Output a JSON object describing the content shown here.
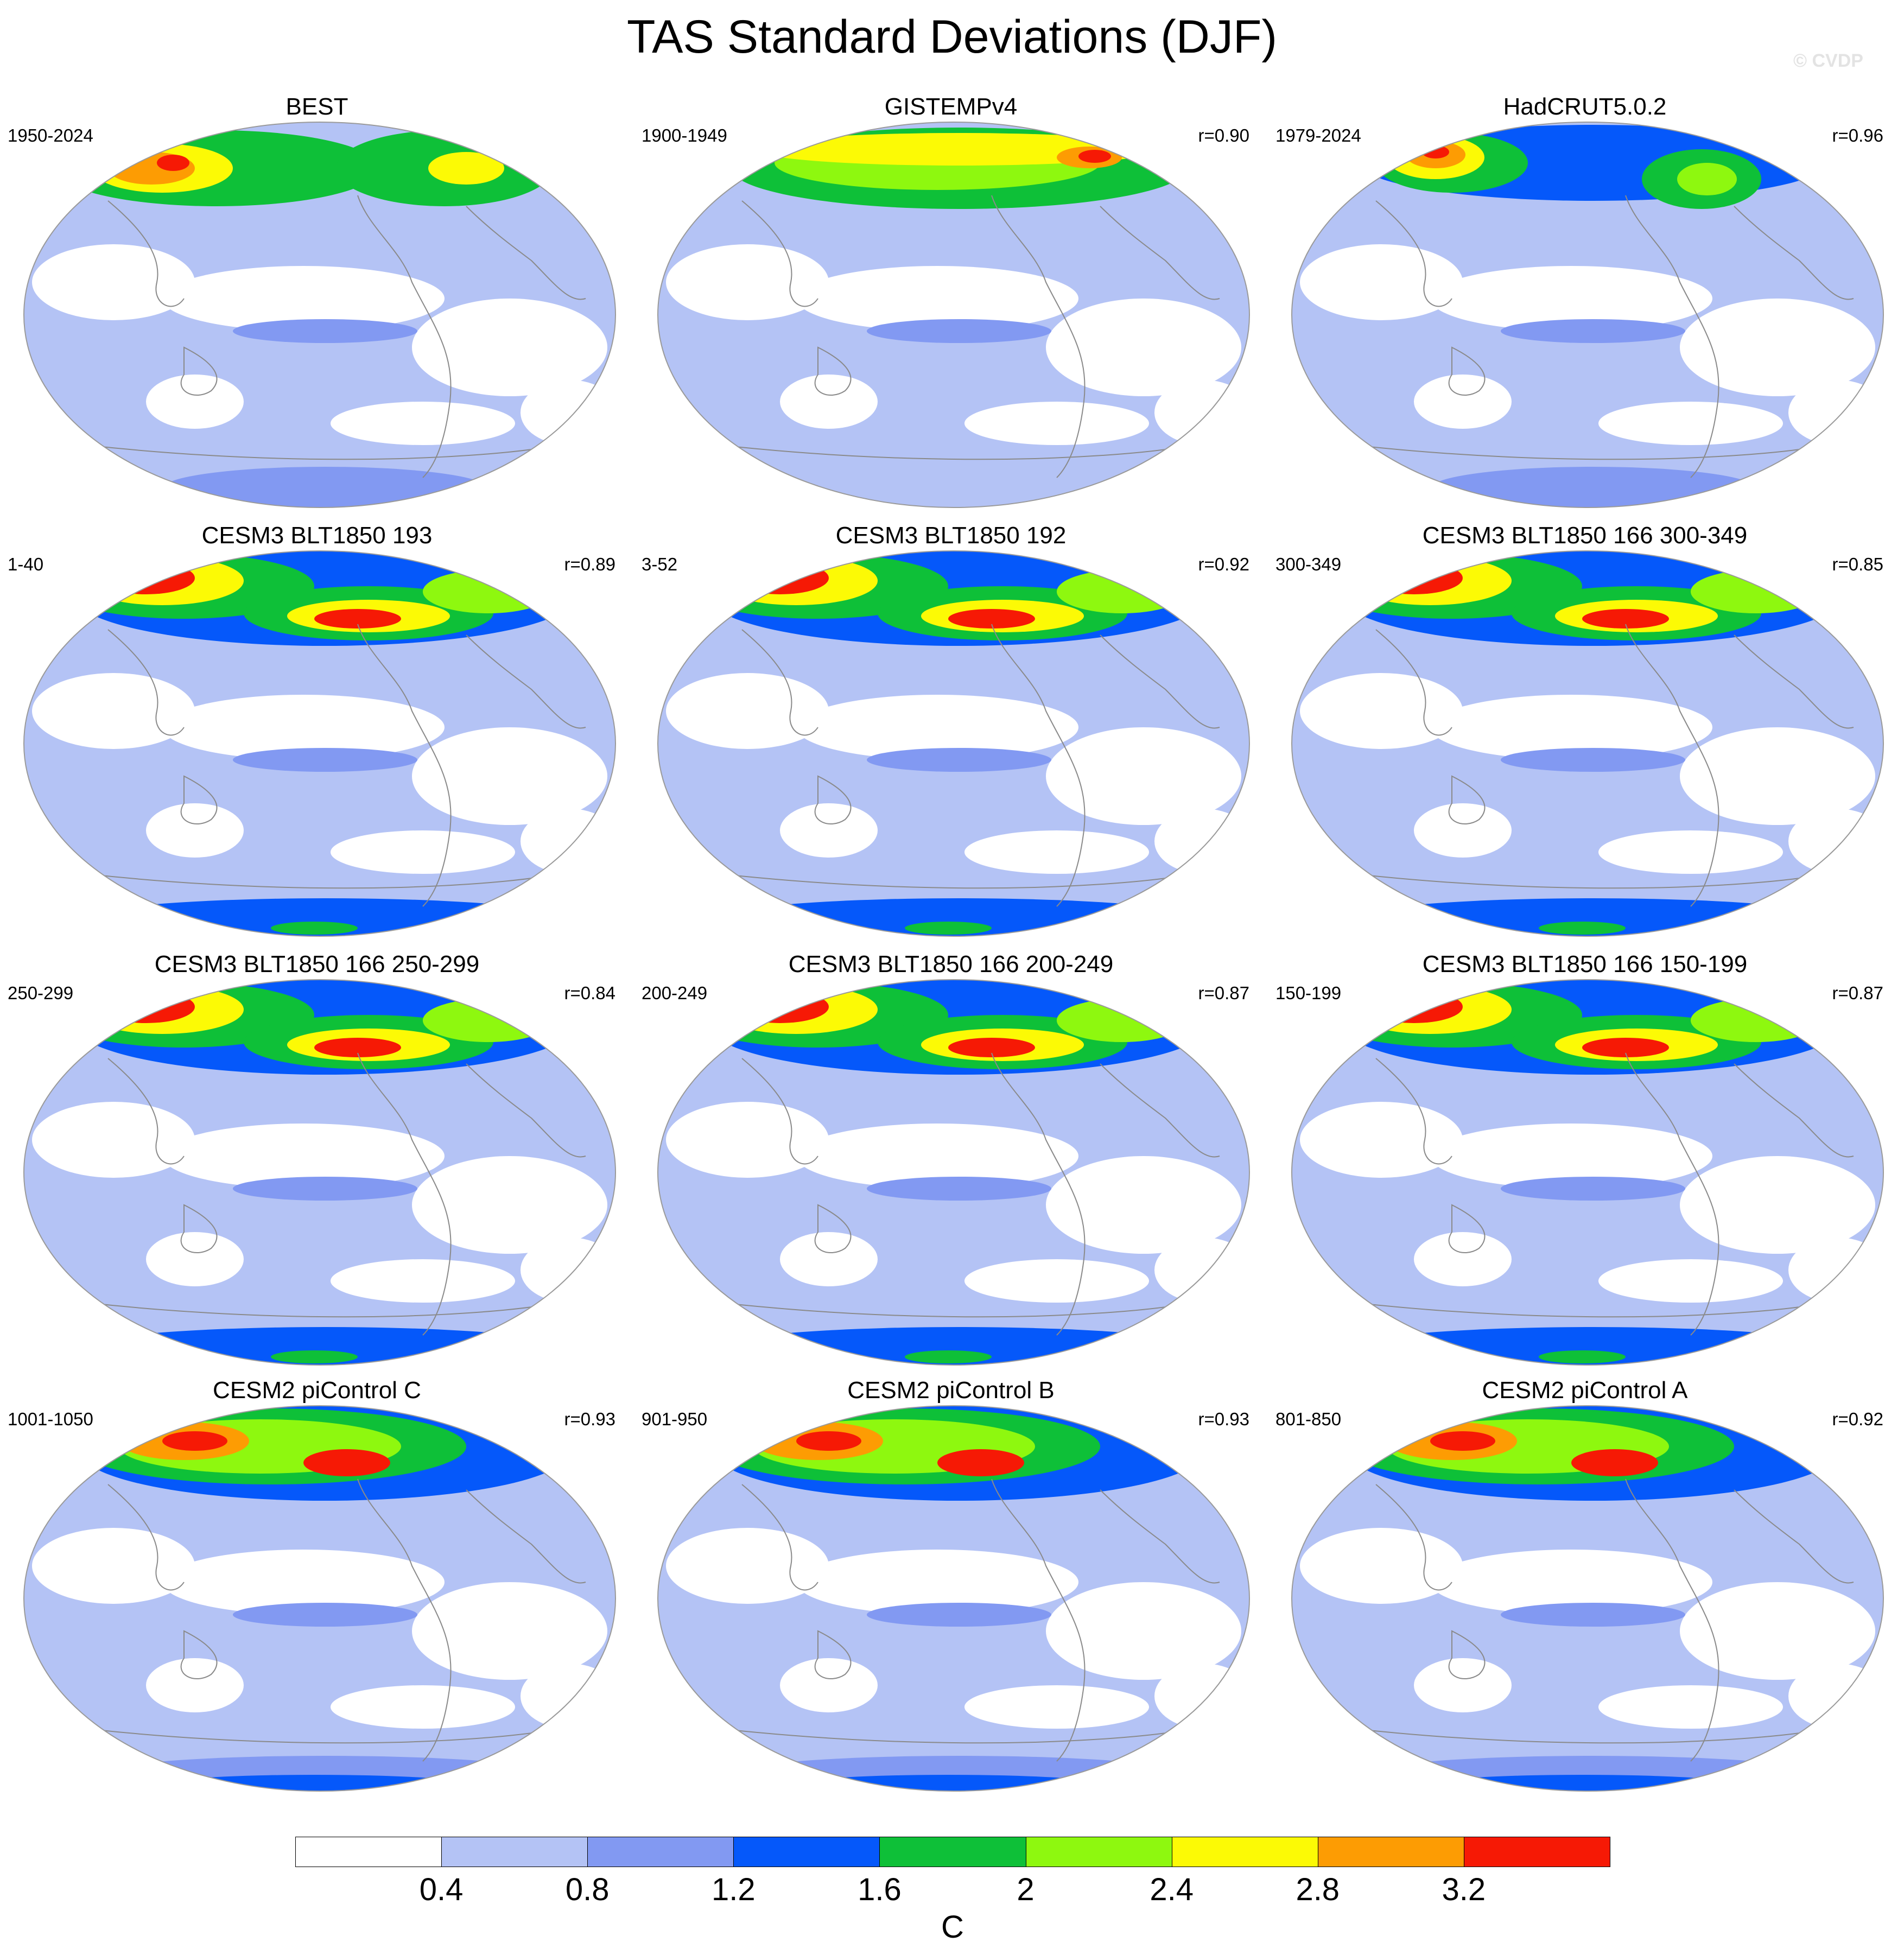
{
  "title": "TAS Standard Deviations (DJF)",
  "watermark": "© CVDP",
  "colors": {
    "levels": [
      "#ffffff",
      "#b4c3f5",
      "#8299f2",
      "#0558fa",
      "#0ec038",
      "#8ef80f",
      "#fcfa05",
      "#fd9c03",
      "#f61905"
    ],
    "coast": "#8a8a8a"
  },
  "colorbar": {
    "labels": [
      "0.4",
      "0.8",
      "1.2",
      "1.6",
      "2",
      "2.4",
      "2.8",
      "3.2"
    ],
    "units": "C"
  },
  "panels": [
    {
      "title": "BEST",
      "years": "1950-2024",
      "corr": "",
      "pattern": "obs"
    },
    {
      "title": "GISTEMPv4",
      "years": "1900-1949",
      "corr": "r=0.90",
      "pattern": "gis"
    },
    {
      "title": "HadCRUT5.0.2",
      "years": "1979-2024",
      "corr": "r=0.96",
      "pattern": "had"
    },
    {
      "title": "CESM3 BLT1850 193",
      "years": "1-40",
      "corr": "r=0.89",
      "pattern": "cesm3"
    },
    {
      "title": "CESM3 BLT1850 192",
      "years": "3-52",
      "corr": "r=0.92",
      "pattern": "cesm3"
    },
    {
      "title": "CESM3 BLT1850 166 300-349",
      "years": "300-349",
      "corr": "r=0.85",
      "pattern": "cesm3"
    },
    {
      "title": "CESM3 BLT1850 166 250-299",
      "years": "250-299",
      "corr": "r=0.84",
      "pattern": "cesm3"
    },
    {
      "title": "CESM3 BLT1850 166 200-249",
      "years": "200-249",
      "corr": "r=0.87",
      "pattern": "cesm3"
    },
    {
      "title": "CESM3 BLT1850 166 150-199",
      "years": "150-199",
      "corr": "r=0.87",
      "pattern": "cesm3"
    },
    {
      "title": "CESM2 piControl C",
      "years": "1001-1050",
      "corr": "r=0.93",
      "pattern": "cesm2"
    },
    {
      "title": "CESM2 piControl B",
      "years": "901-950",
      "corr": "r=0.93",
      "pattern": "cesm2"
    },
    {
      "title": "CESM2 piControl A",
      "years": "801-850",
      "corr": "r=0.92",
      "pattern": "cesm2"
    }
  ]
}
